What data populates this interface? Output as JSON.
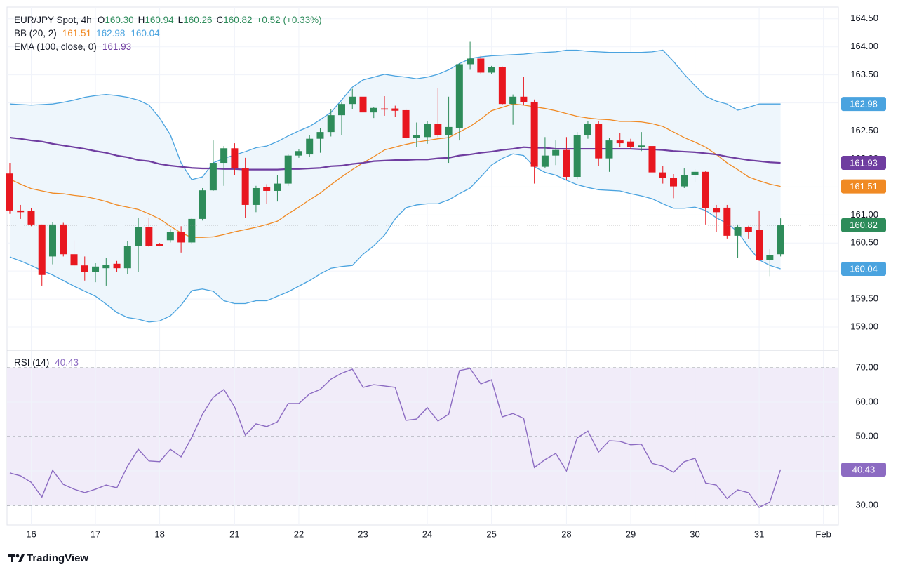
{
  "chart_data": [
    {
      "type": "candlestick",
      "symbol": "EUR/JPY Spot, 4h",
      "ohlc": [
        {
          "label": "O",
          "value": "160.30"
        },
        {
          "label": "H",
          "value": "160.94"
        },
        {
          "label": "L",
          "value": "160.26"
        },
        {
          "label": "C",
          "value": "160.82"
        }
      ],
      "change": "+0.52 (+0.33%)",
      "up_color": "#2e8c5a",
      "down_color": "#e8171f",
      "candles": {
        "open": [
          161.74,
          161.08,
          161.07,
          160.83,
          160.26,
          160.83,
          160.3,
          160.1,
          159.98,
          160.05,
          160.13,
          160.05,
          160.45,
          160.78,
          160.49,
          160.55,
          160.7,
          160.51,
          160.93,
          161.44,
          161.93,
          162.19,
          161.83,
          161.18,
          161.5,
          161.43,
          161.56,
          162.06,
          162.08,
          162.36,
          162.48,
          162.78,
          162.98,
          163.11,
          162.83,
          162.9,
          162.9,
          162.87,
          162.38,
          162.39,
          162.63,
          162.42,
          162.55,
          163.69,
          163.79,
          163.54,
          163.64,
          162.98,
          163.11,
          163.02,
          161.86,
          162.06,
          162.16,
          161.68,
          162.43,
          162.63,
          162.01,
          162.33,
          162.31,
          162.21,
          162.23,
          161.76,
          161.66,
          161.51,
          161.71,
          161.77,
          161.12,
          161.13,
          160.63,
          160.78,
          160.73,
          160.2,
          160.3
        ],
        "high": [
          161.93,
          161.18,
          161.12,
          160.83,
          160.87,
          160.86,
          160.55,
          160.26,
          160.14,
          160.23,
          160.18,
          160.53,
          160.95,
          160.95,
          160.5,
          160.75,
          160.8,
          160.95,
          161.48,
          162.33,
          162.23,
          162.28,
          162.02,
          161.52,
          161.55,
          161.71,
          162.08,
          162.18,
          162.42,
          162.55,
          162.89,
          163.02,
          163.25,
          163.15,
          162.93,
          163.12,
          162.95,
          162.9,
          162.65,
          162.68,
          163.27,
          163.11,
          163.71,
          164.09,
          163.84,
          163.66,
          163.65,
          163.15,
          163.46,
          163.06,
          162.39,
          162.33,
          162.39,
          162.48,
          162.68,
          162.68,
          162.38,
          162.46,
          162.36,
          162.48,
          162.26,
          161.88,
          161.73,
          161.83,
          161.82,
          161.79,
          161.18,
          161.18,
          160.83,
          160.8,
          161.08,
          160.39,
          160.94
        ],
        "low": [
          161.02,
          160.93,
          160.8,
          159.74,
          160.12,
          160.26,
          160.03,
          159.83,
          159.8,
          159.74,
          159.98,
          159.95,
          159.98,
          160.43,
          160.44,
          160.51,
          160.33,
          160.49,
          160.9,
          161.43,
          161.52,
          161.71,
          160.95,
          161.05,
          161.2,
          161.24,
          161.52,
          162.02,
          162.04,
          162.11,
          162.4,
          162.42,
          162.89,
          162.8,
          162.73,
          162.77,
          162.75,
          162.36,
          162.21,
          162.27,
          162.39,
          161.93,
          162.33,
          163.59,
          163.51,
          163.51,
          162.96,
          162.61,
          162.96,
          161.56,
          161.83,
          161.89,
          161.63,
          161.64,
          162.36,
          161.88,
          161.77,
          162.21,
          162.18,
          162.14,
          161.71,
          161.56,
          161.3,
          161.48,
          161.58,
          160.83,
          160.7,
          160.58,
          160.24,
          160.58,
          160.18,
          159.91,
          160.26
        ],
        "close": [
          161.08,
          161.05,
          160.83,
          159.93,
          160.83,
          160.3,
          160.1,
          159.98,
          160.08,
          160.11,
          160.05,
          160.45,
          160.78,
          160.45,
          160.45,
          160.7,
          160.51,
          160.93,
          161.44,
          161.93,
          162.19,
          161.83,
          161.18,
          161.48,
          161.43,
          161.56,
          162.06,
          162.14,
          162.36,
          162.48,
          162.78,
          162.98,
          163.11,
          162.83,
          162.91,
          162.88,
          162.86,
          162.38,
          162.42,
          162.63,
          162.42,
          162.57,
          163.69,
          163.79,
          163.54,
          163.64,
          162.98,
          163.11,
          163.01,
          161.86,
          162.06,
          162.16,
          161.68,
          162.43,
          162.63,
          162.01,
          162.33,
          162.28,
          162.21,
          162.24,
          161.76,
          161.66,
          161.51,
          161.71,
          161.77,
          161.12,
          161.05,
          160.63,
          160.78,
          160.7,
          160.2,
          160.29,
          160.82
        ]
      },
      "overlays": [
        {
          "name": "BB (20, 2)",
          "fill": "#eef6fc",
          "lines": [
            {
              "color": "#f08a24",
              "last_label": "161.51",
              "values": [
                161.64,
                161.55,
                161.47,
                161.43,
                161.39,
                161.38,
                161.35,
                161.33,
                161.29,
                161.24,
                161.18,
                161.14,
                161.1,
                161.02,
                160.93,
                160.8,
                160.68,
                160.6,
                160.6,
                160.61,
                160.65,
                160.7,
                160.74,
                160.78,
                160.83,
                160.89,
                161.02,
                161.14,
                161.27,
                161.39,
                161.54,
                161.68,
                161.81,
                161.93,
                162.04,
                162.16,
                162.21,
                162.26,
                162.3,
                162.33,
                162.36,
                162.38,
                162.48,
                162.58,
                162.71,
                162.86,
                162.92,
                162.98,
                162.96,
                162.93,
                162.9,
                162.86,
                162.81,
                162.76,
                162.73,
                162.71,
                162.7,
                162.67,
                162.67,
                162.66,
                162.63,
                162.58,
                162.48,
                162.38,
                162.3,
                162.21,
                162.08,
                161.93,
                161.81,
                161.68,
                161.61,
                161.55,
                161.51
              ]
            },
            {
              "color": "#4aa3df",
              "last_label": "162.98",
              "values": [
                162.98,
                162.97,
                162.96,
                162.97,
                162.98,
                163.01,
                163.05,
                163.1,
                163.13,
                163.15,
                163.13,
                163.1,
                163.05,
                162.96,
                162.73,
                162.43,
                161.93,
                161.63,
                161.68,
                161.93,
                162.01,
                162.07,
                162.13,
                162.2,
                162.23,
                162.31,
                162.41,
                162.5,
                162.58,
                162.7,
                162.83,
                163.05,
                163.28,
                163.41,
                163.46,
                163.51,
                163.48,
                163.46,
                163.43,
                163.46,
                163.51,
                163.59,
                163.7,
                163.79,
                163.82,
                163.84,
                163.85,
                163.86,
                163.87,
                163.89,
                163.9,
                163.91,
                163.94,
                163.94,
                163.92,
                163.91,
                163.9,
                163.9,
                163.9,
                163.9,
                163.91,
                163.94,
                163.74,
                163.51,
                163.31,
                163.12,
                163.03,
                162.98,
                162.87,
                162.92,
                162.98,
                162.98,
                162.98
              ]
            },
            {
              "color": "#4aa3df",
              "last_label": "160.04",
              "values": [
                160.25,
                160.18,
                160.1,
                160.01,
                159.93,
                159.83,
                159.73,
                159.64,
                159.55,
                159.41,
                159.26,
                159.17,
                159.14,
                159.09,
                159.11,
                159.2,
                159.39,
                159.65,
                159.68,
                159.64,
                159.47,
                159.42,
                159.42,
                159.47,
                159.47,
                159.55,
                159.63,
                159.73,
                159.83,
                159.95,
                160.05,
                160.08,
                160.1,
                160.3,
                160.45,
                160.64,
                160.93,
                161.13,
                161.18,
                161.2,
                161.2,
                161.27,
                161.38,
                161.48,
                161.68,
                161.89,
                162.01,
                162.09,
                162.06,
                161.86,
                161.76,
                161.71,
                161.62,
                161.54,
                161.49,
                161.45,
                161.44,
                161.43,
                161.38,
                161.34,
                161.29,
                161.2,
                161.12,
                161.12,
                161.14,
                161.08,
                160.95,
                160.85,
                160.7,
                160.43,
                160.2,
                160.1,
                160.04
              ]
            }
          ]
        },
        {
          "name": "EMA (100, close, 0)",
          "lines": [
            {
              "color": "#6f3da0",
              "last_label": "161.93",
              "values": [
                162.38,
                162.36,
                162.33,
                162.31,
                162.27,
                162.24,
                162.21,
                162.18,
                162.14,
                162.11,
                162.06,
                162.03,
                161.98,
                161.96,
                161.91,
                161.88,
                161.86,
                161.84,
                161.83,
                161.83,
                161.82,
                161.82,
                161.81,
                161.81,
                161.81,
                161.81,
                161.82,
                161.82,
                161.83,
                161.84,
                161.87,
                161.88,
                161.91,
                161.93,
                161.96,
                161.97,
                161.98,
                161.98,
                161.99,
                161.99,
                162.01,
                162.02,
                162.06,
                162.08,
                162.11,
                162.13,
                162.16,
                162.18,
                162.21,
                162.2,
                162.2,
                162.18,
                162.18,
                162.18,
                162.18,
                162.18,
                162.18,
                162.18,
                162.18,
                162.17,
                162.17,
                162.16,
                162.14,
                162.13,
                162.12,
                162.1,
                162.08,
                162.04,
                162.01,
                161.98,
                161.96,
                161.94,
                161.93
              ]
            }
          ]
        }
      ],
      "xlim": [
        -0.26,
        77.4
      ],
      "ylim": [
        158.6,
        164.71
      ],
      "yticks": [
        {
          "value": 159.0,
          "label": "159.00"
        },
        {
          "value": 159.5,
          "label": "159.50"
        },
        {
          "value": 160.0,
          "label": "160.00"
        },
        {
          "value": 160.5,
          "label": "160.50"
        },
        {
          "value": 161.0,
          "label": "161.00"
        },
        {
          "value": 161.5,
          "label": "161.50"
        },
        {
          "value": 162.0,
          "label": "162.00"
        },
        {
          "value": 162.5,
          "label": "162.50"
        },
        {
          "value": 163.0,
          "label": "163.00"
        },
        {
          "value": 163.5,
          "label": "163.50"
        },
        {
          "value": 164.0,
          "label": "164.00"
        },
        {
          "value": 164.5,
          "label": "164.50"
        }
      ],
      "grid": true
    },
    {
      "type": "line",
      "name": "RSI (14)",
      "color": "#8c6bc2",
      "band_color": "#f1ecf9",
      "last_label": "40.43",
      "values": [
        39.4,
        38.6,
        36.7,
        32.4,
        40.2,
        36.1,
        34.7,
        33.7,
        34.7,
        35.9,
        35.1,
        41.4,
        46.3,
        42.9,
        42.7,
        46.3,
        44.1,
        49.8,
        56.5,
        61.4,
        63.7,
        58.6,
        50.4,
        53.7,
        52.9,
        54.3,
        59.6,
        59.6,
        62.4,
        63.7,
        66.7,
        68.4,
        69.6,
        64.3,
        65.1,
        64.7,
        64.3,
        54.7,
        55.1,
        58.4,
        54.5,
        56.5,
        69.2,
        69.8,
        65.3,
        66.5,
        55.7,
        56.7,
        55.3,
        41.0,
        43.3,
        45.1,
        40.0,
        49.6,
        51.6,
        45.5,
        48.8,
        48.6,
        47.6,
        47.8,
        42.2,
        41.4,
        39.6,
        42.7,
        43.7,
        36.5,
        35.9,
        32.0,
        34.5,
        33.7,
        29.4,
        31.0,
        40.43
      ],
      "levels": [
        70,
        50,
        30
      ],
      "xlim": [
        -0.26,
        77.4
      ],
      "ylim": [
        24.3,
        74.9
      ],
      "yticks": [
        {
          "value": 30,
          "label": "30.00"
        },
        {
          "value": 40,
          "label": "40.00"
        },
        {
          "value": 50,
          "label": "50.00"
        },
        {
          "value": 60,
          "label": "60.00"
        },
        {
          "value": 70,
          "label": "70.00"
        }
      ],
      "xticks": [
        {
          "value": 2,
          "label": "16"
        },
        {
          "value": 8,
          "label": "17"
        },
        {
          "value": 14,
          "label": "18"
        },
        {
          "value": 21,
          "label": "21"
        },
        {
          "value": 27,
          "label": "22"
        },
        {
          "value": 33,
          "label": "23"
        },
        {
          "value": 39,
          "label": "24"
        },
        {
          "value": 45,
          "label": "25"
        },
        {
          "value": 52,
          "label": "28"
        },
        {
          "value": 58,
          "label": "29"
        },
        {
          "value": 64,
          "label": "30"
        },
        {
          "value": 70,
          "label": "31"
        },
        {
          "value": 76,
          "label": "Feb"
        }
      ],
      "grid": true
    }
  ],
  "footer": {
    "brand": "TradingView"
  }
}
